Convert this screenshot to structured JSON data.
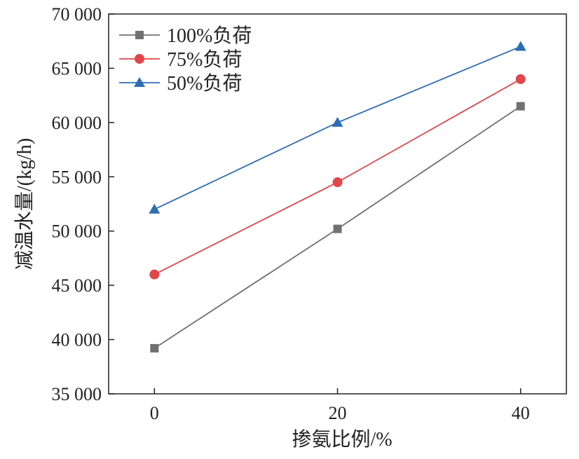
{
  "chart_data": {
    "type": "line",
    "title": "",
    "xlabel": "掺氨比例/%",
    "ylabel": "减温水量/(kg/h)",
    "x": [
      0,
      20,
      40
    ],
    "xlim": [
      -5,
      45
    ],
    "ylim": [
      35000,
      70000
    ],
    "xticks": [
      0,
      20,
      40
    ],
    "xtick_labels": [
      "0",
      "20",
      "40"
    ],
    "yticks": [
      35000,
      40000,
      45000,
      50000,
      55000,
      60000,
      65000,
      70000
    ],
    "ytick_labels": [
      "35 000",
      "40 000",
      "45 000",
      "50 000",
      "55 000",
      "60 000",
      "65 000",
      "70 000"
    ],
    "grid": false,
    "legend_position": "top-left",
    "series": [
      {
        "name": "100%负荷",
        "values": [
          39200,
          50200,
          61500
        ],
        "color": "#707070",
        "marker": "square"
      },
      {
        "name": "75%负荷",
        "values": [
          46000,
          54500,
          64000
        ],
        "color": "#e0464a",
        "marker": "circle"
      },
      {
        "name": "50%负荷",
        "values": [
          52000,
          60000,
          67000
        ],
        "color": "#2e6db4",
        "marker": "triangle"
      }
    ]
  }
}
